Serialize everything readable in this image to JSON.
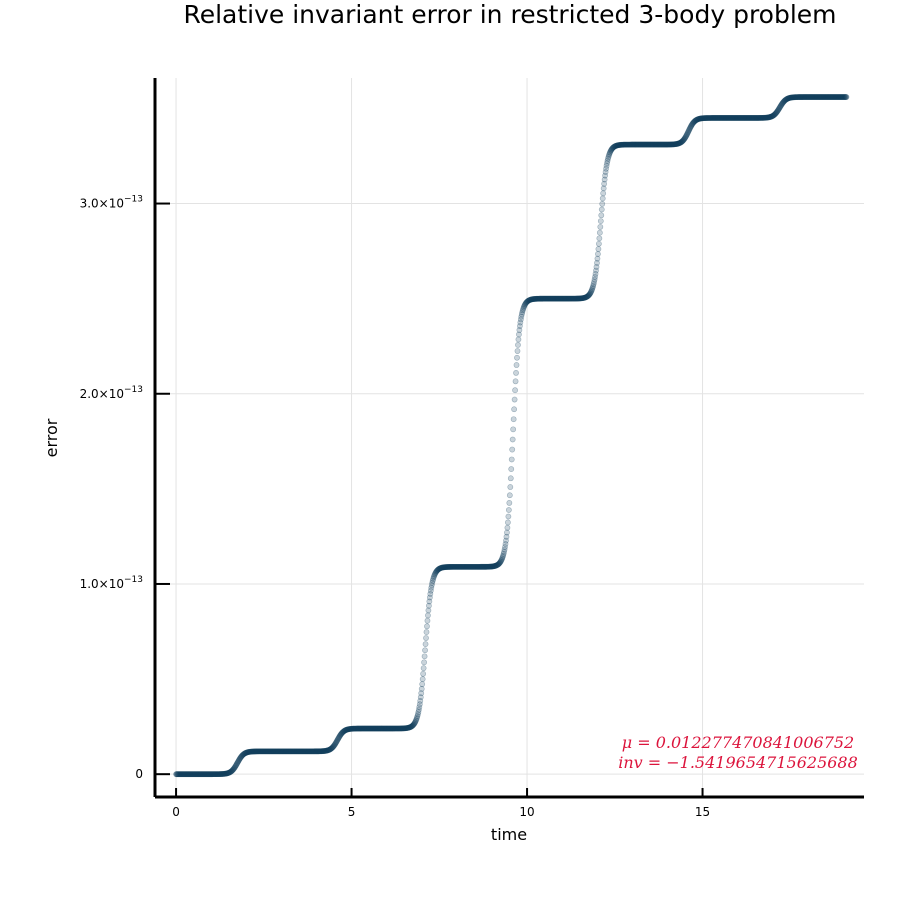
{
  "chart_data": {
    "type": "scatter",
    "title": "Relative invariant error in restricted 3-body problem",
    "xlabel": "time",
    "ylabel": "error",
    "xlim": [
      -0.6,
      19.6
    ],
    "ylim": [
      -1.2e-14,
      3.66e-13
    ],
    "xticks": [
      {
        "value": 0,
        "label": "0"
      },
      {
        "value": 5,
        "label": "5"
      },
      {
        "value": 10,
        "label": "10"
      },
      {
        "value": 15,
        "label": "15"
      }
    ],
    "yticks": [
      {
        "value": 0,
        "label": "0",
        "exp": ""
      },
      {
        "value": 1e-13,
        "label": "1.0×10",
        "exp": "−13"
      },
      {
        "value": 2e-13,
        "label": "2.0×10",
        "exp": "−13"
      },
      {
        "value": 3e-13,
        "label": "3.0×10",
        "exp": "−13"
      }
    ],
    "grid": true,
    "legend": "none",
    "series": [
      {
        "marker_color": "#0d3b5a",
        "x_range": [
          0,
          19.1
        ],
        "step_transitions": [
          {
            "t": 1.75,
            "from": 0.0,
            "to": 1.2e-14
          },
          {
            "t": 4.6,
            "from": 1.2e-14,
            "to": 2.4e-14
          },
          {
            "t": 7.1,
            "from": 2.4e-14,
            "to": 1.09e-13
          },
          {
            "t": 9.6,
            "from": 1.09e-13,
            "to": 2.5e-13
          },
          {
            "t": 12.1,
            "from": 2.5e-13,
            "to": 3.31e-13
          },
          {
            "t": 14.6,
            "from": 3.31e-13,
            "to": 3.45e-13
          },
          {
            "t": 17.2,
            "from": 3.45e-13,
            "to": 3.56e-13
          }
        ]
      }
    ],
    "annotations": [
      {
        "text": "μ = 0.012277470841006752"
      },
      {
        "text": "inv = −1.5419654715625688"
      }
    ]
  }
}
